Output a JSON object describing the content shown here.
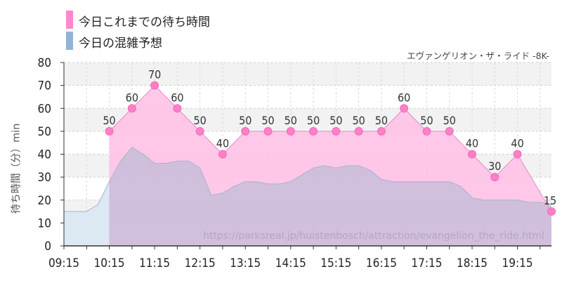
{
  "legend": {
    "items": [
      {
        "label": "今日これまでの待ち時間",
        "color": "#ff88cc"
      },
      {
        "label": "今日の混雑予想",
        "color": "#8fb4d8"
      }
    ]
  },
  "subtitle": "エヴァンゲリオン・ザ・ライド -8K-",
  "chart_data": {
    "type": "area",
    "title": "",
    "ylabel": "待ち時間（分）min",
    "xlabel": "",
    "ylim": [
      0,
      80
    ],
    "yticks": [
      0,
      10,
      20,
      30,
      40,
      50,
      60,
      70,
      80
    ],
    "xlim": [
      "09:15",
      "20:00"
    ],
    "xticks": [
      "09:15",
      "10:15",
      "11:15",
      "12:15",
      "13:15",
      "14:15",
      "15:15",
      "16:15",
      "17:15",
      "18:15",
      "19:15"
    ],
    "grid": true,
    "watermark": "https://parksreal.jp/huistenbosch/attraction/evangelion_the_ride.html",
    "series": [
      {
        "name": "今日の混雑予想",
        "color": "#8fb4d8",
        "points": [
          [
            "09:15",
            15
          ],
          [
            "09:30",
            15
          ],
          [
            "09:45",
            15
          ],
          [
            "10:00",
            18
          ],
          [
            "10:15",
            28
          ],
          [
            "10:30",
            37
          ],
          [
            "10:45",
            43
          ],
          [
            "11:00",
            40
          ],
          [
            "11:15",
            36
          ],
          [
            "11:30",
            36
          ],
          [
            "11:45",
            37
          ],
          [
            "12:00",
            37
          ],
          [
            "12:15",
            34
          ],
          [
            "12:30",
            22
          ],
          [
            "12:45",
            23
          ],
          [
            "13:00",
            26
          ],
          [
            "13:15",
            28
          ],
          [
            "13:30",
            28
          ],
          [
            "13:45",
            27
          ],
          [
            "14:00",
            27
          ],
          [
            "14:15",
            28
          ],
          [
            "14:30",
            31
          ],
          [
            "14:45",
            34
          ],
          [
            "15:00",
            35
          ],
          [
            "15:15",
            34
          ],
          [
            "15:30",
            35
          ],
          [
            "15:45",
            35
          ],
          [
            "16:00",
            33
          ],
          [
            "16:15",
            29
          ],
          [
            "16:30",
            28
          ],
          [
            "16:45",
            28
          ],
          [
            "17:00",
            28
          ],
          [
            "17:15",
            28
          ],
          [
            "17:30",
            28
          ],
          [
            "17:45",
            28
          ],
          [
            "18:00",
            26
          ],
          [
            "18:15",
            21
          ],
          [
            "18:30",
            20
          ],
          [
            "18:45",
            20
          ],
          [
            "19:00",
            20
          ],
          [
            "19:15",
            20
          ],
          [
            "19:30",
            19
          ],
          [
            "19:45",
            19
          ],
          [
            "20:00",
            18
          ]
        ]
      },
      {
        "name": "今日これまでの待ち時間",
        "color": "#ff88cc",
        "points": [
          [
            "10:15",
            50
          ],
          [
            "10:45",
            60
          ],
          [
            "11:15",
            70
          ],
          [
            "11:45",
            60
          ],
          [
            "12:15",
            50
          ],
          [
            "12:45",
            40
          ],
          [
            "13:15",
            50
          ],
          [
            "13:45",
            50
          ],
          [
            "14:15",
            50
          ],
          [
            "14:45",
            50
          ],
          [
            "15:15",
            50
          ],
          [
            "15:45",
            50
          ],
          [
            "16:15",
            50
          ],
          [
            "16:45",
            60
          ],
          [
            "17:15",
            50
          ],
          [
            "17:45",
            50
          ],
          [
            "18:15",
            40
          ],
          [
            "18:45",
            30
          ],
          [
            "19:15",
            40
          ],
          [
            "20:00",
            15
          ]
        ]
      }
    ]
  }
}
